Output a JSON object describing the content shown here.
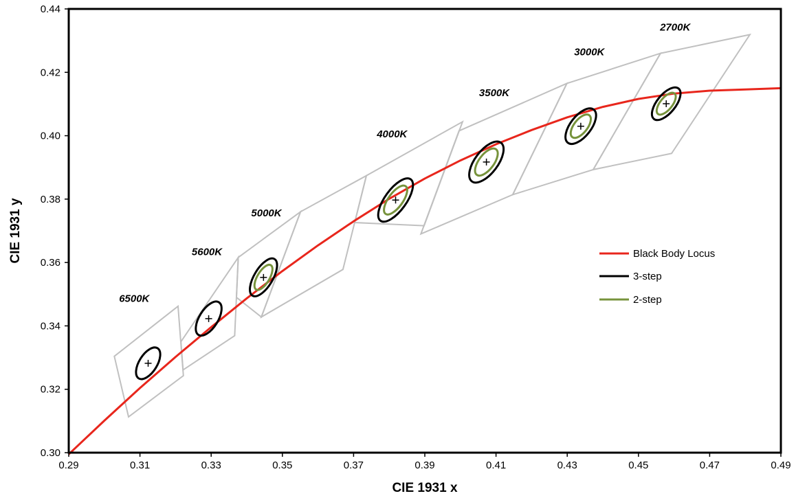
{
  "chart_data": {
    "type": "scatter",
    "xlabel": "CIE 1931 x",
    "ylabel": "CIE 1931 y",
    "xlim": [
      0.29,
      0.49
    ],
    "ylim": [
      0.3,
      0.44
    ],
    "x_ticks": [
      "0.29",
      "0.31",
      "0.33",
      "0.35",
      "0.37",
      "0.39",
      "0.41",
      "0.43",
      "0.45",
      "0.47",
      "0.49"
    ],
    "y_ticks": [
      "0.30",
      "0.32",
      "0.34",
      "0.36",
      "0.38",
      "0.40",
      "0.42",
      "0.44"
    ],
    "grid": false,
    "legend_position": "right",
    "colors": {
      "locus": "#e8261c",
      "three_step": "#000000",
      "two_step": "#77933c",
      "quad": "#c0c0c0"
    },
    "legend": [
      "Black Body Locus",
      "3-step",
      "2-step"
    ],
    "series": [
      {
        "name": "Black Body Locus",
        "x": [
          0.29,
          0.3,
          0.31,
          0.32,
          0.33,
          0.34,
          0.35,
          0.36,
          0.37,
          0.38,
          0.39,
          0.4,
          0.41,
          0.42,
          0.43,
          0.44,
          0.45,
          0.46,
          0.47,
          0.48,
          0.49
        ],
        "y": [
          0.2995,
          0.3101,
          0.3204,
          0.3302,
          0.3396,
          0.3487,
          0.3573,
          0.3654,
          0.373,
          0.3801,
          0.3865,
          0.3922,
          0.3973,
          0.4018,
          0.4058,
          0.4091,
          0.4116,
          0.4133,
          0.4142,
          0.4146,
          0.415
        ]
      }
    ],
    "cct_points": [
      {
        "label": "6500K",
        "x": 0.3123,
        "y": 0.3282,
        "label_x": 0.3084,
        "label_y": 0.3476
      },
      {
        "label": "5600K",
        "x": 0.3293,
        "y": 0.3423,
        "label_x": 0.3288,
        "label_y": 0.3623
      },
      {
        "label": "5000K",
        "x": 0.3447,
        "y": 0.3553,
        "label_x": 0.3455,
        "label_y": 0.3746
      },
      {
        "label": "4000K",
        "x": 0.3818,
        "y": 0.3797,
        "label_x": 0.3808,
        "label_y": 0.3995
      },
      {
        "label": "3500K",
        "x": 0.4073,
        "y": 0.3917,
        "label_x": 0.4095,
        "label_y": 0.4125
      },
      {
        "label": "3000K",
        "x": 0.4338,
        "y": 0.403,
        "label_x": 0.4362,
        "label_y": 0.4254
      },
      {
        "label": "2700K",
        "x": 0.4578,
        "y": 0.4101,
        "label_x": 0.4603,
        "label_y": 0.4332
      }
    ],
    "three_step_ellipses": [
      {
        "x": 0.3123,
        "y": 0.3282,
        "a": 0.005,
        "b": 0.0025,
        "angle": 58
      },
      {
        "x": 0.3293,
        "y": 0.3423,
        "a": 0.0054,
        "b": 0.0026,
        "angle": 58
      },
      {
        "x": 0.3447,
        "y": 0.3553,
        "a": 0.006,
        "b": 0.0026,
        "angle": 59
      },
      {
        "x": 0.3818,
        "y": 0.3797,
        "a": 0.0072,
        "b": 0.003,
        "angle": 54
      },
      {
        "x": 0.4073,
        "y": 0.3917,
        "a": 0.0068,
        "b": 0.0032,
        "angle": 53
      },
      {
        "x": 0.4338,
        "y": 0.403,
        "a": 0.0059,
        "b": 0.0029,
        "angle": 52
      },
      {
        "x": 0.4578,
        "y": 0.4101,
        "a": 0.0055,
        "b": 0.0026,
        "angle": 51
      }
    ],
    "two_step_ellipses": [
      {
        "x": 0.3447,
        "y": 0.3553,
        "a": 0.004,
        "b": 0.0017,
        "angle": 59
      },
      {
        "x": 0.3818,
        "y": 0.3797,
        "a": 0.0048,
        "b": 0.002,
        "angle": 54
      },
      {
        "x": 0.4073,
        "y": 0.3917,
        "a": 0.0045,
        "b": 0.0021,
        "angle": 53
      },
      {
        "x": 0.4338,
        "y": 0.403,
        "a": 0.0039,
        "b": 0.0019,
        "angle": 52
      },
      {
        "x": 0.4578,
        "y": 0.4101,
        "a": 0.0037,
        "b": 0.0017,
        "angle": 51
      }
    ],
    "quadrangles": [
      [
        [
          0.3028,
          0.3304
        ],
        [
          0.3207,
          0.3462
        ],
        [
          0.3222,
          0.3243
        ],
        [
          0.3068,
          0.3113
        ]
      ],
      [
        [
          0.3221,
          0.3261
        ],
        [
          0.3366,
          0.3369
        ],
        [
          0.3376,
          0.3616
        ],
        [
          0.3215,
          0.335
        ]
      ],
      [
        [
          0.3371,
          0.349
        ],
        [
          0.3376,
          0.3616
        ],
        [
          0.3551,
          0.376
        ],
        [
          0.3441,
          0.3428
        ]
      ],
      [
        [
          0.3441,
          0.3428
        ],
        [
          0.3551,
          0.376
        ],
        [
          0.3736,
          0.3874
        ],
        [
          0.367,
          0.3578
        ]
      ],
      [
        [
          0.3703,
          0.3726
        ],
        [
          0.3736,
          0.3874
        ],
        [
          0.4006,
          0.4044
        ],
        [
          0.3898,
          0.3716
        ]
      ],
      [
        [
          0.3996,
          0.4015
        ],
        [
          0.4299,
          0.4165
        ],
        [
          0.4147,
          0.3814
        ],
        [
          0.3889,
          0.369
        ]
      ],
      [
        [
          0.4299,
          0.4165
        ],
        [
          0.4562,
          0.426
        ],
        [
          0.4373,
          0.3893
        ],
        [
          0.4147,
          0.3814
        ]
      ],
      [
        [
          0.4562,
          0.426
        ],
        [
          0.4813,
          0.4319
        ],
        [
          0.4593,
          0.3944
        ],
        [
          0.4373,
          0.3893
        ]
      ]
    ]
  }
}
